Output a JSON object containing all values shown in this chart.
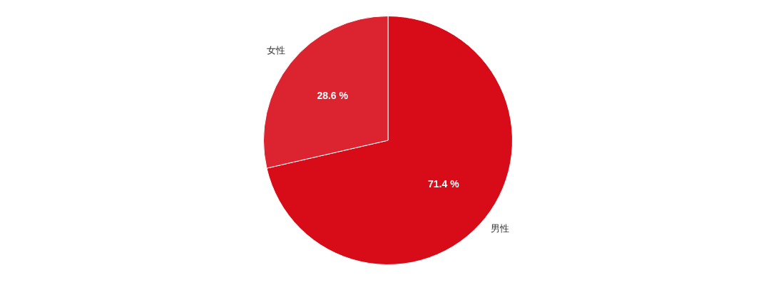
{
  "chart_data": {
    "type": "pie",
    "categories": [
      "男性",
      "女性"
    ],
    "values": [
      71.4,
      28.6
    ],
    "colors": [
      "#d80c18",
      "#dc2430"
    ],
    "value_labels": [
      "71.4 %",
      "28.6 %"
    ],
    "legend": false
  }
}
